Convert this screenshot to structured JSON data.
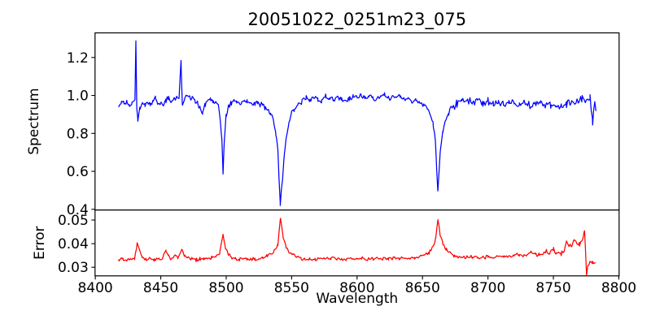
{
  "figure": {
    "title": "20051022_0251m23_075",
    "xlabel": "Wavelength",
    "background_color": "#ffffff",
    "axis_color": "#000000",
    "xticks": [
      {
        "v": 8400,
        "label": "8400"
      },
      {
        "v": 8450,
        "label": "8450"
      },
      {
        "v": 8500,
        "label": "8500"
      },
      {
        "v": 8550,
        "label": "8550"
      },
      {
        "v": 8600,
        "label": "8600"
      },
      {
        "v": 8650,
        "label": "8650"
      },
      {
        "v": 8700,
        "label": "8700"
      },
      {
        "v": 8750,
        "label": "8750"
      },
      {
        "v": 8800,
        "label": "8800"
      }
    ]
  },
  "chart_data": [
    {
      "type": "line",
      "panel": "spectrum",
      "title": "20051022_0251m23_075",
      "ylabel": "Spectrum",
      "line_color": "#0000ff",
      "grid": false,
      "xlim": [
        8399.8,
        8800.2
      ],
      "ylim": [
        0.3962,
        1.3296
      ],
      "yticks": [
        {
          "v": 0.4,
          "label": "0.4"
        },
        {
          "v": 0.6,
          "label": "0.6"
        },
        {
          "v": 0.8,
          "label": "0.8"
        },
        {
          "v": 1.0,
          "label": "1.0"
        },
        {
          "v": 1.2,
          "label": "1.2"
        }
      ],
      "x_data_range": [
        8418,
        8782.5
      ],
      "features": {
        "continuum_level": 0.97,
        "absorption_lines": [
          {
            "wavelength": 8498,
            "min_flux": 0.59
          },
          {
            "wavelength": 8542,
            "min_flux": 0.43
          },
          {
            "wavelength": 8662,
            "min_flux": 0.49
          }
        ],
        "emission_spikes": [
          {
            "wavelength": 8431,
            "peak_flux": 1.28
          },
          {
            "wavelength": 8466,
            "peak_flux": 1.17
          }
        ]
      },
      "noise": {
        "amplitude": 0.016,
        "seed": 20051022
      },
      "noise_regions": [
        {
          "from": 8668,
          "to": 8783,
          "scale": 1.55
        }
      ],
      "sample_step": 0.9,
      "anchors": [
        [
          8418,
          0.95
        ],
        [
          8420,
          0.97
        ],
        [
          8422,
          0.955
        ],
        [
          8424,
          0.965
        ],
        [
          8426,
          0.95
        ],
        [
          8428,
          0.96
        ],
        [
          8430.3,
          0.975
        ],
        [
          8431,
          1.285
        ],
        [
          8431.7,
          0.93
        ],
        [
          8432.5,
          0.86
        ],
        [
          8434,
          0.93
        ],
        [
          8436,
          0.96
        ],
        [
          8438,
          0.945
        ],
        [
          8440,
          0.965
        ],
        [
          8442,
          0.95
        ],
        [
          8444,
          0.97
        ],
        [
          8446,
          0.985
        ],
        [
          8448,
          0.955
        ],
        [
          8450,
          0.965
        ],
        [
          8452,
          0.945
        ],
        [
          8454,
          0.975
        ],
        [
          8456,
          0.99
        ],
        [
          8458,
          0.965
        ],
        [
          8460,
          0.975
        ],
        [
          8462,
          0.985
        ],
        [
          8464,
          0.985
        ],
        [
          8465.5,
          1.175
        ],
        [
          8466.5,
          0.95
        ],
        [
          8468,
          0.975
        ],
        [
          8470,
          1.0
        ],
        [
          8472,
          0.985
        ],
        [
          8474,
          0.995
        ],
        [
          8476,
          0.97
        ],
        [
          8478,
          0.965
        ],
        [
          8480,
          0.93
        ],
        [
          8482,
          0.91
        ],
        [
          8484,
          0.95
        ],
        [
          8486,
          0.975
        ],
        [
          8488,
          0.985
        ],
        [
          8490,
          0.97
        ],
        [
          8492,
          0.96
        ],
        [
          8494,
          0.945
        ],
        [
          8495.5,
          0.87
        ],
        [
          8496.7,
          0.76
        ],
        [
          8497.6,
          0.59
        ],
        [
          8498.6,
          0.77
        ],
        [
          8500,
          0.9
        ],
        [
          8502,
          0.945
        ],
        [
          8504,
          0.96
        ],
        [
          8506,
          0.975
        ],
        [
          8508,
          0.97
        ],
        [
          8510,
          0.96
        ],
        [
          8512,
          0.965
        ],
        [
          8514,
          0.975
        ],
        [
          8516,
          0.97
        ],
        [
          8518,
          0.955
        ],
        [
          8520,
          0.965
        ],
        [
          8522,
          0.96
        ],
        [
          8524,
          0.965
        ],
        [
          8526,
          0.945
        ],
        [
          8528,
          0.955
        ],
        [
          8530,
          0.93
        ],
        [
          8532,
          0.92
        ],
        [
          8534,
          0.9
        ],
        [
          8536,
          0.875
        ],
        [
          8538,
          0.8
        ],
        [
          8539.5,
          0.7
        ],
        [
          8541.3,
          0.425
        ],
        [
          8543,
          0.56
        ],
        [
          8544.5,
          0.7
        ],
        [
          8546,
          0.78
        ],
        [
          8548,
          0.86
        ],
        [
          8550,
          0.91
        ],
        [
          8552,
          0.93
        ],
        [
          8555,
          0.95
        ],
        [
          8558,
          0.97
        ],
        [
          8561,
          0.985
        ],
        [
          8564,
          0.975
        ],
        [
          8567,
          0.99
        ],
        [
          8570,
          0.98
        ],
        [
          8573,
          0.97
        ],
        [
          8576,
          0.995
        ],
        [
          8579,
          0.985
        ],
        [
          8582,
          0.975
        ],
        [
          8585,
          0.99
        ],
        [
          8588,
          0.98
        ],
        [
          8591,
          0.97
        ],
        [
          8594,
          0.985
        ],
        [
          8597,
          0.995
        ],
        [
          8600,
          0.985
        ],
        [
          8603,
          0.995
        ],
        [
          8606,
          0.985
        ],
        [
          8609,
          1.0
        ],
        [
          8612,
          0.99
        ],
        [
          8615,
          0.98
        ],
        [
          8618,
          0.995
        ],
        [
          8621,
          1.0
        ],
        [
          8624,
          0.985
        ],
        [
          8627,
          0.995
        ],
        [
          8630,
          0.99
        ],
        [
          8633,
          1.0
        ],
        [
          8636,
          0.98
        ],
        [
          8639,
          0.99
        ],
        [
          8642,
          0.97
        ],
        [
          8645,
          0.975
        ],
        [
          8648,
          0.96
        ],
        [
          8651,
          0.955
        ],
        [
          8654,
          0.93
        ],
        [
          8656,
          0.9
        ],
        [
          8658,
          0.86
        ],
        [
          8659.8,
          0.76
        ],
        [
          8661.7,
          0.49
        ],
        [
          8663.5,
          0.7
        ],
        [
          8665.5,
          0.8
        ],
        [
          8668,
          0.875
        ],
        [
          8670,
          0.9
        ],
        [
          8673,
          0.935
        ],
        [
          8676,
          0.955
        ],
        [
          8680,
          0.965
        ],
        [
          8684,
          0.975
        ],
        [
          8688,
          0.965
        ],
        [
          8692,
          0.975
        ],
        [
          8696,
          0.96
        ],
        [
          8700,
          0.97
        ],
        [
          8704,
          0.955
        ],
        [
          8708,
          0.965
        ],
        [
          8712,
          0.95
        ],
        [
          8716,
          0.965
        ],
        [
          8720,
          0.955
        ],
        [
          8724,
          0.945
        ],
        [
          8728,
          0.96
        ],
        [
          8732,
          0.945
        ],
        [
          8736,
          0.95
        ],
        [
          8740,
          0.96
        ],
        [
          8744,
          0.94
        ],
        [
          8748,
          0.95
        ],
        [
          8752,
          0.935
        ],
        [
          8756,
          0.945
        ],
        [
          8760,
          0.955
        ],
        [
          8764,
          0.96
        ],
        [
          8768,
          0.97
        ],
        [
          8772,
          0.985
        ],
        [
          8775,
          0.96
        ],
        [
          8778,
          1.0
        ],
        [
          8780,
          0.85
        ],
        [
          8781.5,
          0.97
        ],
        [
          8782.5,
          0.93
        ]
      ]
    },
    {
      "type": "line",
      "panel": "error",
      "ylabel": "Error",
      "xlabel": "Wavelength",
      "line_color": "#ff0000",
      "grid": false,
      "xlim": [
        8399.8,
        8800.2
      ],
      "ylim": [
        0.02634,
        0.05424
      ],
      "yticks": [
        {
          "v": 0.03,
          "label": "0.03"
        },
        {
          "v": 0.04,
          "label": "0.04"
        },
        {
          "v": 0.05,
          "label": "0.05"
        }
      ],
      "x_data_range": [
        8418,
        8782
      ],
      "features": {
        "baseline_level": 0.033,
        "error_peaks": [
          {
            "wavelength": 8498,
            "peak": 0.044
          },
          {
            "wavelength": 8542,
            "peak": 0.051
          },
          {
            "wavelength": 8662,
            "peak": 0.05
          },
          {
            "wavelength": 8774,
            "peak": 0.046
          }
        ],
        "sharp_drop": {
          "wavelength": 8775.3,
          "value": 0.027
        }
      },
      "noise": {
        "amplitude": 0.00095,
        "seed": 251023
      },
      "noise_regions": [
        {
          "from": 8740,
          "to": 8783,
          "scale": 1.4
        }
      ],
      "sample_step": 0.9,
      "anchors": [
        [
          8418,
          0.033
        ],
        [
          8421,
          0.0336
        ],
        [
          8424,
          0.033
        ],
        [
          8427,
          0.0334
        ],
        [
          8430,
          0.034
        ],
        [
          8432,
          0.0403
        ],
        [
          8434,
          0.037
        ],
        [
          8436,
          0.034
        ],
        [
          8439,
          0.0333
        ],
        [
          8442,
          0.0336
        ],
        [
          8445,
          0.0332
        ],
        [
          8448,
          0.0338
        ],
        [
          8451,
          0.0334
        ],
        [
          8454,
          0.0372
        ],
        [
          8456,
          0.0348
        ],
        [
          8458,
          0.0336
        ],
        [
          8461,
          0.0352
        ],
        [
          8463,
          0.034
        ],
        [
          8466,
          0.0372
        ],
        [
          8468,
          0.035
        ],
        [
          8471,
          0.0338
        ],
        [
          8474,
          0.0334
        ],
        [
          8477,
          0.0332
        ],
        [
          8480,
          0.0336
        ],
        [
          8483,
          0.0333
        ],
        [
          8486,
          0.0338
        ],
        [
          8489,
          0.034
        ],
        [
          8492,
          0.0345
        ],
        [
          8495,
          0.0358
        ],
        [
          8497.6,
          0.0436
        ],
        [
          8499.5,
          0.038
        ],
        [
          8501,
          0.036
        ],
        [
          8504,
          0.0345
        ],
        [
          8507,
          0.0338
        ],
        [
          8510,
          0.0334
        ],
        [
          8513,
          0.0337
        ],
        [
          8516,
          0.0333
        ],
        [
          8519,
          0.0336
        ],
        [
          8522,
          0.0334
        ],
        [
          8525,
          0.0338
        ],
        [
          8528,
          0.0342
        ],
        [
          8531,
          0.0348
        ],
        [
          8534,
          0.0355
        ],
        [
          8537,
          0.0372
        ],
        [
          8539.5,
          0.04
        ],
        [
          8541.5,
          0.051
        ],
        [
          8543.5,
          0.043
        ],
        [
          8545.5,
          0.039
        ],
        [
          8548,
          0.0368
        ],
        [
          8551,
          0.0352
        ],
        [
          8554,
          0.0344
        ],
        [
          8557,
          0.0338
        ],
        [
          8560,
          0.0335
        ],
        [
          8564,
          0.0338
        ],
        [
          8568,
          0.0334
        ],
        [
          8572,
          0.0337
        ],
        [
          8576,
          0.0334
        ],
        [
          8580,
          0.0338
        ],
        [
          8584,
          0.0335
        ],
        [
          8588,
          0.0337
        ],
        [
          8592,
          0.0334
        ],
        [
          8596,
          0.0338
        ],
        [
          8600,
          0.0336
        ],
        [
          8604,
          0.0339
        ],
        [
          8608,
          0.0335
        ],
        [
          8612,
          0.0338
        ],
        [
          8616,
          0.0335
        ],
        [
          8620,
          0.0338
        ],
        [
          8624,
          0.0336
        ],
        [
          8628,
          0.034
        ],
        [
          8632,
          0.0337
        ],
        [
          8636,
          0.034
        ],
        [
          8640,
          0.0338
        ],
        [
          8644,
          0.0342
        ],
        [
          8648,
          0.0347
        ],
        [
          8652,
          0.0355
        ],
        [
          8655,
          0.0362
        ],
        [
          8658,
          0.0385
        ],
        [
          8660,
          0.042
        ],
        [
          8661.8,
          0.0505
        ],
        [
          8663.5,
          0.044
        ],
        [
          8665.5,
          0.04
        ],
        [
          8668,
          0.0375
        ],
        [
          8671,
          0.036
        ],
        [
          8674,
          0.035
        ],
        [
          8677,
          0.0345
        ],
        [
          8680,
          0.0342
        ],
        [
          8684,
          0.034
        ],
        [
          8688,
          0.0342
        ],
        [
          8692,
          0.034
        ],
        [
          8696,
          0.0343
        ],
        [
          8700,
          0.0345
        ],
        [
          8704,
          0.0342
        ],
        [
          8708,
          0.0345
        ],
        [
          8712,
          0.0343
        ],
        [
          8716,
          0.0347
        ],
        [
          8720,
          0.035
        ],
        [
          8724,
          0.0352
        ],
        [
          8727,
          0.0348
        ],
        [
          8730,
          0.0352
        ],
        [
          8733,
          0.036
        ],
        [
          8736,
          0.0355
        ],
        [
          8739,
          0.0352
        ],
        [
          8742,
          0.036
        ],
        [
          8745,
          0.0368
        ],
        [
          8747,
          0.0355
        ],
        [
          8750,
          0.0378
        ],
        [
          8752,
          0.036
        ],
        [
          8754,
          0.0365
        ],
        [
          8756,
          0.0358
        ],
        [
          8758,
          0.0368
        ],
        [
          8760,
          0.041
        ],
        [
          8762,
          0.0385
        ],
        [
          8764,
          0.0395
        ],
        [
          8766,
          0.042
        ],
        [
          8768,
          0.0398
        ],
        [
          8770,
          0.04
        ],
        [
          8772,
          0.0418
        ],
        [
          8773.8,
          0.0455
        ],
        [
          8775.3,
          0.0273
        ],
        [
          8776.5,
          0.031
        ],
        [
          8778,
          0.0322
        ],
        [
          8780,
          0.0318
        ],
        [
          8782,
          0.032
        ]
      ]
    }
  ]
}
